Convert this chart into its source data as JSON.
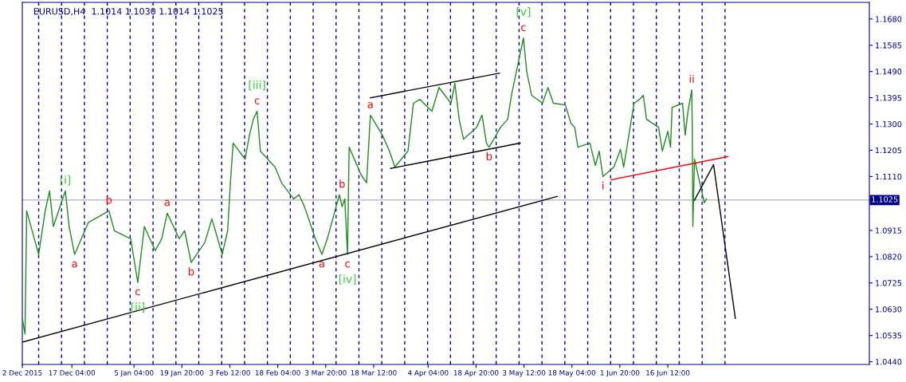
{
  "chart_data": {
    "type": "line",
    "title": "EURUSD,H4  1.1014 1.1030 1.1014 1.1025",
    "xlim": [
      "2015-12-02T00:00",
      "2016-08-17T04:00"
    ],
    "ylim": [
      1.043,
      1.174
    ],
    "xticks": [
      {
        "value": "2015-12-02T00:00",
        "label": "2 Dec 2015"
      },
      {
        "value": "2015-12-17T04:00",
        "label": "17 Dec 04:00"
      },
      {
        "value": "2016-01-05T04:00",
        "label": "5 Jan 04:00"
      },
      {
        "value": "2016-01-19T20:00",
        "label": "19 Jan 20:00"
      },
      {
        "value": "2016-02-03T12:00",
        "label": "3 Feb 12:00"
      },
      {
        "value": "2016-02-18T04:00",
        "label": "18 Feb 04:00"
      },
      {
        "value": "2016-03-03T20:00",
        "label": "3 Mar 20:00"
      },
      {
        "value": "2016-03-18T12:00",
        "label": "18 Mar 12:00"
      },
      {
        "value": "2016-04-04T04:00",
        "label": "4 Apr 04:00"
      },
      {
        "value": "2016-04-18T20:00",
        "label": "18 Apr 20:00"
      },
      {
        "value": "2016-05-03T12:00",
        "label": "3 May 12:00"
      },
      {
        "value": "2016-05-18T04:00",
        "label": "18 May 04:00"
      },
      {
        "value": "2016-06-01T20:00",
        "label": "1 Jun 20:00"
      },
      {
        "value": "2016-06-16T12:00",
        "label": "16 Jun 12:00"
      }
    ],
    "yticks": [
      {
        "value": 1.044,
        "label": "1.0440"
      },
      {
        "value": 1.0535,
        "label": "1.0535"
      },
      {
        "value": 1.063,
        "label": "1.0630"
      },
      {
        "value": 1.0725,
        "label": "1.0725"
      },
      {
        "value": 1.082,
        "label": "1.0820"
      },
      {
        "value": 1.0915,
        "label": "1.0915"
      },
      {
        "value": 1.111,
        "label": "1.1110"
      },
      {
        "value": 1.1205,
        "label": "1.1205"
      },
      {
        "value": 1.13,
        "label": "1.1300"
      },
      {
        "value": 1.1395,
        "label": "1.1395"
      },
      {
        "value": 1.149,
        "label": "1.1490"
      },
      {
        "value": 1.1585,
        "label": "1.1585"
      },
      {
        "value": 1.168,
        "label": "1.1680"
      }
    ],
    "grid": false,
    "legend": false,
    "marker": "none",
    "line_style": "solid",
    "series": [
      {
        "color": "#228b22",
        "x": [
          "2015-12-02T00:00",
          "2015-12-02T20:00",
          "2015-12-03T08:00",
          "2015-12-07T00:00",
          "2015-12-09T00:00",
          "2015-12-10T08:00",
          "2015-12-11T12:00",
          "2015-12-15T04:00",
          "2015-12-16T08:00",
          "2015-12-18T00:00",
          "2015-12-22T04:00",
          "2015-12-28T12:00",
          "2015-12-30T04:00",
          "2016-01-04T04:00",
          "2016-01-06T08:00",
          "2016-01-08T08:00",
          "2016-01-11T16:00",
          "2016-01-13T16:00",
          "2016-01-15T08:00",
          "2016-01-19T00:00",
          "2016-01-20T16:00",
          "2016-01-22T16:00",
          "2016-01-26T20:00",
          "2016-01-29T00:00",
          "2016-02-01T04:00",
          "2016-02-02T20:00",
          "2016-02-03T16:00",
          "2016-02-04T12:00",
          "2016-02-08T04:00",
          "2016-02-09T12:00",
          "2016-02-10T16:00",
          "2016-02-11T20:00",
          "2016-02-12T20:00",
          "2016-02-17T08:00",
          "2016-02-19T08:00",
          "2016-02-23T00:00",
          "2016-02-24T16:00",
          "2016-02-26T08:00",
          "2016-02-29T16:00",
          "2016-03-02T16:00",
          "2016-03-04T08:00",
          "2016-03-08T00:00",
          "2016-03-08T20:00",
          "2016-03-09T16:00",
          "2016-03-10T12:00",
          "2016-03-11T00:00",
          "2016-03-14T16:00",
          "2016-03-16T08:00",
          "2016-03-17T12:00",
          "2016-03-21T04:00",
          "2016-03-23T08:00",
          "2016-03-25T00:00",
          "2016-03-29T00:00",
          "2016-03-30T16:00",
          "2016-04-01T16:00",
          "2016-04-05T08:00",
          "2016-04-07T12:00",
          "2016-04-11T04:00",
          "2016-04-12T08:00",
          "2016-04-13T16:00",
          "2016-04-15T00:00",
          "2016-04-19T00:00",
          "2016-04-20T16:00",
          "2016-04-22T00:00",
          "2016-04-22T20:00",
          "2016-04-26T08:00",
          "2016-04-28T12:00",
          "2016-04-29T16:00",
          "2016-05-03T08:00",
          "2016-05-04T08:00",
          "2016-05-05T20:00",
          "2016-05-09T04:00",
          "2016-05-10T20:00",
          "2016-05-12T12:00",
          "2016-05-16T04:00",
          "2016-05-17T20:00",
          "2016-05-19T00:00",
          "2016-05-20T00:00",
          "2016-05-23T16:00",
          "2016-05-25T08:00",
          "2016-05-26T12:00",
          "2016-05-27T16:00",
          "2016-05-31T00:00",
          "2016-06-02T00:00",
          "2016-06-03T00:00",
          "2016-06-06T04:00",
          "2016-06-07T20:00",
          "2016-06-09T00:00",
          "2016-06-10T00:00",
          "2016-06-13T16:00",
          "2016-06-14T20:00",
          "2016-06-16T12:00",
          "2016-06-17T08:00",
          "2016-06-17T20:00",
          "2016-06-21T00:00",
          "2016-06-21T20:00",
          "2016-06-22T16:00",
          "2016-06-23T20:00",
          "2016-06-24T00:00",
          "2016-06-24T04:00",
          "2016-06-24T16:00",
          "2016-06-27T16:00",
          "2016-06-28T08:00"
        ],
        "values": [
          1.0597,
          1.054,
          1.0986,
          1.0828,
          1.0986,
          1.1058,
          1.0929,
          1.1058,
          1.0929,
          1.0828,
          1.0943,
          1.0986,
          1.0914,
          1.0885,
          1.0727,
          1.0929,
          1.0842,
          1.0885,
          1.0978,
          1.0885,
          1.0914,
          1.0799,
          1.0871,
          1.0957,
          1.0828,
          1.0914,
          1.1087,
          1.1231,
          1.1173,
          1.126,
          1.1317,
          1.1346,
          1.1202,
          1.1144,
          1.1087,
          1.1029,
          1.1044,
          1.1001,
          1.0885,
          1.0828,
          1.0885,
          1.1044,
          1.1001,
          1.1029,
          1.0828,
          1.1216,
          1.1116,
          1.1087,
          1.1332,
          1.126,
          1.1202,
          1.1144,
          1.1202,
          1.1375,
          1.1389,
          1.1346,
          1.1432,
          1.1375,
          1.1447,
          1.1317,
          1.1245,
          1.1288,
          1.1332,
          1.1231,
          1.1216,
          1.1288,
          1.1317,
          1.1404,
          1.1611,
          1.149,
          1.1404,
          1.1375,
          1.1432,
          1.1375,
          1.1369,
          1.1303,
          1.1288,
          1.1216,
          1.1231,
          1.115,
          1.1202,
          1.111,
          1.1144,
          1.1208,
          1.1144,
          1.1375,
          1.1389,
          1.1404,
          1.1317,
          1.1288,
          1.1202,
          1.1274,
          1.1216,
          1.136,
          1.1375,
          1.126,
          1.1346,
          1.1424,
          1.126,
          1.0929,
          1.1173,
          1.1015,
          1.1029
        ]
      },
      {
        "color": "#000000",
        "x": [
          "2015-12-02T00:00",
          "2016-05-13T16:00"
        ],
        "values": [
          1.0511,
          1.1038
        ]
      },
      {
        "color": "#000000",
        "x": [
          "2016-03-17T12:00",
          "2016-04-26T00:00"
        ],
        "values": [
          1.1395,
          1.1484
        ]
      },
      {
        "color": "#000000",
        "x": [
          "2016-03-23T16:00",
          "2016-05-02T08:00"
        ],
        "values": [
          1.1139,
          1.1231
        ]
      },
      {
        "color": "#ff0000",
        "x": [
          "2016-05-30T04:00",
          "2016-07-04T20:00"
        ],
        "values": [
          1.1098,
          1.1182
        ]
      },
      {
        "color": "#000000",
        "x": [
          "2016-06-24T16:00",
          "2016-06-30T12:00",
          "2016-07-07T04:00"
        ],
        "values": [
          1.1024,
          1.1153,
          1.0597
        ]
      }
    ],
    "ref_lines": [
      {
        "axis": "y",
        "value": 1.1025,
        "label": "1.1025",
        "color": "#c0c0c0",
        "line_style": "solid"
      },
      {
        "axis": "x",
        "value": "2015-12-07",
        "color": "#0000a0",
        "line_style": "dashed"
      },
      {
        "axis": "x",
        "value": "2015-12-14",
        "color": "#0000a0",
        "line_style": "dashed"
      },
      {
        "axis": "x",
        "value": "2015-12-21",
        "color": "#0000a0",
        "line_style": "dashed"
      },
      {
        "axis": "x",
        "value": "2015-12-28",
        "color": "#0000a0",
        "line_style": "dashed"
      },
      {
        "axis": "x",
        "value": "2016-01-04",
        "color": "#0000a0",
        "line_style": "dashed"
      },
      {
        "axis": "x",
        "value": "2016-01-11",
        "color": "#0000a0",
        "line_style": "dashed"
      },
      {
        "axis": "x",
        "value": "2016-01-18",
        "color": "#0000a0",
        "line_style": "dashed"
      },
      {
        "axis": "x",
        "value": "2016-01-25",
        "color": "#0000a0",
        "line_style": "dashed"
      },
      {
        "axis": "x",
        "value": "2016-02-01",
        "color": "#0000a0",
        "line_style": "dashed"
      },
      {
        "axis": "x",
        "value": "2016-02-08",
        "color": "#0000a0",
        "line_style": "dashed"
      },
      {
        "axis": "x",
        "value": "2016-02-15",
        "color": "#0000a0",
        "line_style": "dashed"
      },
      {
        "axis": "x",
        "value": "2016-02-22",
        "color": "#0000a0",
        "line_style": "dashed"
      },
      {
        "axis": "x",
        "value": "2016-02-29",
        "color": "#0000a0",
        "line_style": "dashed"
      },
      {
        "axis": "x",
        "value": "2016-03-07",
        "color": "#0000a0",
        "line_style": "dashed"
      },
      {
        "axis": "x",
        "value": "2016-03-14",
        "color": "#0000a0",
        "line_style": "dashed"
      },
      {
        "axis": "x",
        "value": "2016-03-21",
        "color": "#0000a0",
        "line_style": "dashed"
      },
      {
        "axis": "x",
        "value": "2016-03-28",
        "color": "#0000a0",
        "line_style": "dashed"
      },
      {
        "axis": "x",
        "value": "2016-04-04",
        "color": "#0000a0",
        "line_style": "dashed"
      },
      {
        "axis": "x",
        "value": "2016-04-11",
        "color": "#0000a0",
        "line_style": "dashed"
      },
      {
        "axis": "x",
        "value": "2016-04-18",
        "color": "#0000a0",
        "line_style": "dashed"
      },
      {
        "axis": "x",
        "value": "2016-04-25",
        "color": "#0000a0",
        "line_style": "dashed"
      },
      {
        "axis": "x",
        "value": "2016-05-02",
        "color": "#0000a0",
        "line_style": "dashed"
      },
      {
        "axis": "x",
        "value": "2016-05-09",
        "color": "#0000a0",
        "line_style": "dashed"
      },
      {
        "axis": "x",
        "value": "2016-05-16",
        "color": "#0000a0",
        "line_style": "dashed"
      },
      {
        "axis": "x",
        "value": "2016-05-23",
        "color": "#0000a0",
        "line_style": "dashed"
      },
      {
        "axis": "x",
        "value": "2016-05-30",
        "color": "#0000a0",
        "line_style": "dashed"
      },
      {
        "axis": "x",
        "value": "2016-06-06",
        "color": "#0000a0",
        "line_style": "dashed"
      },
      {
        "axis": "x",
        "value": "2016-06-13",
        "color": "#0000a0",
        "line_style": "dashed"
      },
      {
        "axis": "x",
        "value": "2016-06-20",
        "color": "#0000a0",
        "line_style": "dashed"
      },
      {
        "axis": "x",
        "value": "2016-06-27",
        "color": "#0000a0",
        "line_style": "dashed"
      },
      {
        "axis": "x",
        "value": "2016-07-04",
        "color": "#0000a0",
        "line_style": "dashed"
      }
    ],
    "annotations": [
      {
        "text": "[i]",
        "x": "2015-12-15T04:00",
        "y": 1.1058
      },
      {
        "text": "a",
        "x": "2015-12-18T00:00",
        "y": 1.0828
      },
      {
        "text": "b",
        "x": "2015-12-28T12:00",
        "y": 1.0986
      },
      {
        "text": "c",
        "x": "2016-01-06T08:00",
        "y": 1.0727
      },
      {
        "text": "[ii]",
        "x": "2016-01-06T08:00",
        "y": 1.0727
      },
      {
        "text": "a",
        "x": "2016-01-15T08:00",
        "y": 1.0978
      },
      {
        "text": "b",
        "x": "2016-01-22T16:00",
        "y": 1.0799
      },
      {
        "text": "c",
        "x": "2016-02-11T20:00",
        "y": 1.1346
      },
      {
        "text": "[iii]",
        "x": "2016-02-11T20:00",
        "y": 1.1346
      },
      {
        "text": "a",
        "x": "2016-03-02T16:00",
        "y": 1.0828
      },
      {
        "text": "b",
        "x": "2016-03-08T20:00",
        "y": 1.1044
      },
      {
        "text": "c",
        "x": "2016-03-10T12:00",
        "y": 1.0828
      },
      {
        "text": "[iv]",
        "x": "2016-03-10T12:00",
        "y": 1.0828
      },
      {
        "text": "a",
        "x": "2016-03-17T12:00",
        "y": 1.1332
      },
      {
        "text": "b",
        "x": "2016-04-22T20:00",
        "y": 1.1216
      },
      {
        "text": "c",
        "x": "2016-05-03T08:00",
        "y": 1.1611
      },
      {
        "text": "[v]",
        "x": "2016-05-03T08:00",
        "y": 1.1611
      },
      {
        "text": "i",
        "x": "2016-05-27T16:00",
        "y": 1.111
      },
      {
        "text": "ii",
        "x": "2016-06-23T20:00",
        "y": 1.1424
      }
    ]
  }
}
